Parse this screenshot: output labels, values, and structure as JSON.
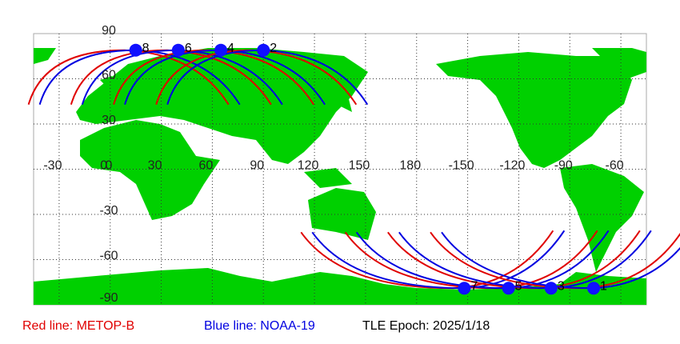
{
  "map": {
    "lon_labels": [
      -30,
      0,
      30,
      60,
      90,
      120,
      150,
      180,
      -150,
      -120,
      -90,
      -60
    ],
    "lat_labels": [
      90,
      60,
      30,
      0,
      -30,
      -60,
      -90
    ],
    "passes": [
      {
        "label": "8",
        "lon": 15,
        "lat": 79
      },
      {
        "label": "6",
        "lon": 40,
        "lat": 79
      },
      {
        "label": "4",
        "lon": 65,
        "lat": 79
      },
      {
        "label": "2",
        "lon": 90,
        "lat": 79
      },
      {
        "label": "7",
        "lon": -152,
        "lat": -79
      },
      {
        "label": "5",
        "lon": -126,
        "lat": -79
      },
      {
        "label": "3",
        "lon": -101,
        "lat": -79
      },
      {
        "label": "1",
        "lon": -76,
        "lat": -79
      }
    ]
  },
  "legend": {
    "red": "Red line: METOP-B",
    "blue": "Blue line: NOAA-19",
    "epoch": "TLE Epoch: 2025/1/18"
  }
}
